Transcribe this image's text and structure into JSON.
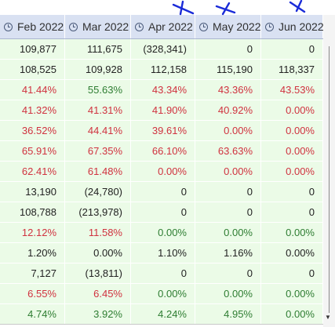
{
  "headers": [
    "Feb 2022",
    "Mar 2022",
    "Apr 2022",
    "May 2022",
    "Jun 2022"
  ],
  "icons": {
    "header": "clock-icon",
    "annotation": "blue-x-mark",
    "scroll_down": "down-arrow-icon"
  },
  "colors": {
    "negative": "#d0323f",
    "positive": "#2e7d32",
    "neutral": "#222222",
    "cell_bg": "#ebfbe7",
    "header_bg": "#d9e1f2",
    "annotation": "#1a2bd8"
  },
  "rows": [
    [
      {
        "v": "109,877",
        "c": "neu"
      },
      {
        "v": "111,675",
        "c": "neu"
      },
      {
        "v": "(328,341)",
        "c": "neu"
      },
      {
        "v": "0",
        "c": "neu"
      },
      {
        "v": "0",
        "c": "neu"
      }
    ],
    [
      {
        "v": "108,525",
        "c": "neu"
      },
      {
        "v": "109,928",
        "c": "neu"
      },
      {
        "v": "112,158",
        "c": "neu"
      },
      {
        "v": "115,190",
        "c": "neu"
      },
      {
        "v": "118,337",
        "c": "neu"
      }
    ],
    [
      {
        "v": "41.44%",
        "c": "neg"
      },
      {
        "v": "55.63%",
        "c": "pos"
      },
      {
        "v": "43.34%",
        "c": "neg"
      },
      {
        "v": "43.36%",
        "c": "neg"
      },
      {
        "v": "43.53%",
        "c": "neg"
      }
    ],
    [
      {
        "v": "41.32%",
        "c": "neg"
      },
      {
        "v": "41.31%",
        "c": "neg"
      },
      {
        "v": "41.90%",
        "c": "neg"
      },
      {
        "v": "40.92%",
        "c": "neg"
      },
      {
        "v": "0.00%",
        "c": "neg"
      }
    ],
    [
      {
        "v": "36.52%",
        "c": "neg"
      },
      {
        "v": "44.41%",
        "c": "neg"
      },
      {
        "v": "39.61%",
        "c": "neg"
      },
      {
        "v": "0.00%",
        "c": "neg"
      },
      {
        "v": "0.00%",
        "c": "neg"
      }
    ],
    [
      {
        "v": "65.91%",
        "c": "neg"
      },
      {
        "v": "67.35%",
        "c": "neg"
      },
      {
        "v": "66.10%",
        "c": "neg"
      },
      {
        "v": "63.63%",
        "c": "neg"
      },
      {
        "v": "0.00%",
        "c": "neg"
      }
    ],
    [
      {
        "v": "62.41%",
        "c": "neg"
      },
      {
        "v": "61.48%",
        "c": "neg"
      },
      {
        "v": "0.00%",
        "c": "neg"
      },
      {
        "v": "0.00%",
        "c": "neg"
      },
      {
        "v": "0.00%",
        "c": "neg"
      }
    ],
    [
      {
        "v": "13,190",
        "c": "neu"
      },
      {
        "v": "(24,780)",
        "c": "neu"
      },
      {
        "v": "0",
        "c": "neu"
      },
      {
        "v": "0",
        "c": "neu"
      },
      {
        "v": "0",
        "c": "neu"
      }
    ],
    [
      {
        "v": "108,788",
        "c": "neu"
      },
      {
        "v": "(213,978)",
        "c": "neu"
      },
      {
        "v": "0",
        "c": "neu"
      },
      {
        "v": "0",
        "c": "neu"
      },
      {
        "v": "0",
        "c": "neu"
      }
    ],
    [
      {
        "v": "12.12%",
        "c": "neg"
      },
      {
        "v": "11.58%",
        "c": "neg"
      },
      {
        "v": "0.00%",
        "c": "pos"
      },
      {
        "v": "0.00%",
        "c": "pos"
      },
      {
        "v": "0.00%",
        "c": "pos"
      }
    ],
    [
      {
        "v": "1.20%",
        "c": "neu"
      },
      {
        "v": "0.00%",
        "c": "neu"
      },
      {
        "v": "1.10%",
        "c": "neu"
      },
      {
        "v": "1.16%",
        "c": "neu"
      },
      {
        "v": "0.00%",
        "c": "neu"
      }
    ],
    [
      {
        "v": "7,127",
        "c": "neu"
      },
      {
        "v": "(13,811)",
        "c": "neu"
      },
      {
        "v": "0",
        "c": "neu"
      },
      {
        "v": "0",
        "c": "neu"
      },
      {
        "v": "0",
        "c": "neu"
      }
    ],
    [
      {
        "v": "6.55%",
        "c": "neg"
      },
      {
        "v": "6.45%",
        "c": "neg"
      },
      {
        "v": "0.00%",
        "c": "pos"
      },
      {
        "v": "0.00%",
        "c": "pos"
      },
      {
        "v": "0.00%",
        "c": "pos"
      }
    ],
    [
      {
        "v": "4.74%",
        "c": "pos"
      },
      {
        "v": "3.92%",
        "c": "pos"
      },
      {
        "v": "4.24%",
        "c": "pos"
      },
      {
        "v": "4.95%",
        "c": "pos"
      },
      {
        "v": "0.00%",
        "c": "pos"
      }
    ]
  ]
}
